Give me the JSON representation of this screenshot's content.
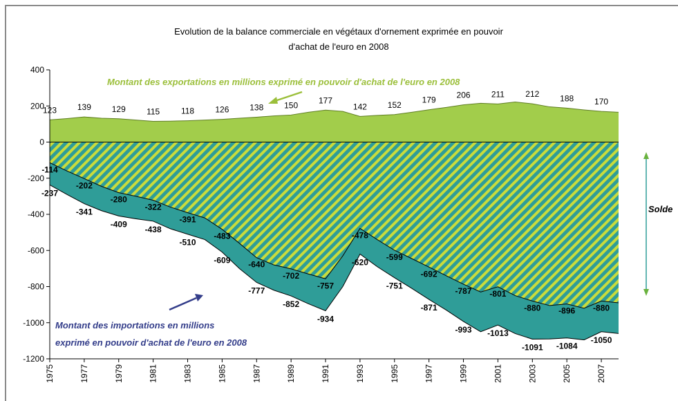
{
  "chart_data": {
    "type": "area",
    "title": [
      "Evolution de la balance commerciale en végétaux d'ornement exprimée en pouvoir",
      "d'achat de l'euro en 2008"
    ],
    "annotations": {
      "exports": "Montant des exportations en millions exprimé en pouvoir d'achat de l'euro en 2008",
      "imports": [
        "Montant des importations en millions",
        "exprimé en pouvoir d'achat de l'euro en 2008"
      ],
      "solde": "Solde"
    },
    "x": [
      1975,
      1976,
      1977,
      1978,
      1979,
      1980,
      1981,
      1982,
      1983,
      1984,
      1985,
      1986,
      1987,
      1988,
      1989,
      1990,
      1991,
      1992,
      1993,
      1994,
      1995,
      1996,
      1997,
      1998,
      1999,
      2000,
      2001,
      2002,
      2003,
      2004,
      2005,
      2006,
      2007,
      2008
    ],
    "xlim": [
      1975,
      2008
    ],
    "xticks": [
      1975,
      1977,
      1979,
      1981,
      1983,
      1985,
      1987,
      1989,
      1991,
      1993,
      1995,
      1997,
      1999,
      2001,
      2003,
      2005,
      2007
    ],
    "ylim": [
      -1200,
      400
    ],
    "yticks": [
      -1200,
      -1000,
      -800,
      -600,
      -400,
      -200,
      0,
      200,
      400
    ],
    "series": [
      {
        "name": "Exportations",
        "color": "#a2cd4b",
        "values": [
          123,
          130,
          139,
          132,
          129,
          122,
          115,
          116,
          118,
          122,
          126,
          132,
          138,
          145,
          150,
          165,
          177,
          170,
          142,
          148,
          152,
          165,
          179,
          192,
          206,
          215,
          211,
          222,
          212,
          195,
          188,
          178,
          170,
          165
        ]
      },
      {
        "name": "Importations",
        "color": "#2f9d98",
        "values": [
          -237,
          -290,
          -341,
          -380,
          -409,
          -425,
          -438,
          -480,
          -510,
          -540,
          -609,
          -700,
          -777,
          -820,
          -852,
          -895,
          -934,
          -800,
          -620,
          -690,
          -751,
          -810,
          -871,
          -930,
          -993,
          -1050,
          -1013,
          -1060,
          -1091,
          -1090,
          -1084,
          -1095,
          -1050,
          -1060
        ]
      },
      {
        "name": "Solde",
        "color": "#c9dc3c",
        "values": [
          -114,
          -160,
          -202,
          -245,
          -280,
          -300,
          -322,
          -360,
          -391,
          -420,
          -483,
          -560,
          -640,
          -680,
          -702,
          -730,
          -757,
          -630,
          -478,
          -540,
          -599,
          -645,
          -692,
          -740,
          -787,
          -830,
          -801,
          -850,
          -880,
          -905,
          -896,
          -920,
          -880,
          -890
        ]
      }
    ]
  }
}
